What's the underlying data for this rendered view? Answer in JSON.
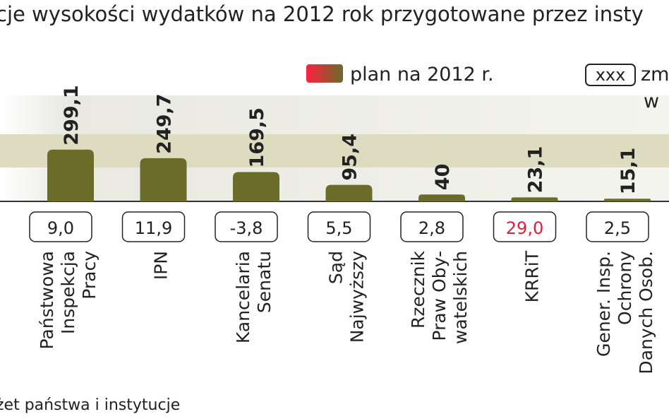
{
  "chart_data": {
    "type": "bar",
    "title": "cje wysokości wydatków na 2012 rok przygotowane przez insty",
    "legend": [
      "plan na 2012  r.",
      "xxx",
      "zm",
      "w"
    ],
    "source": "żet państwa i instytucje",
    "categories": [
      [
        "Państwowa",
        "Inspekcja",
        "Pracy"
      ],
      [
        "IPN"
      ],
      [
        "Kancelaria",
        "Senatu"
      ],
      [
        "Sąd",
        "Najwyższy"
      ],
      [
        "Rzecznik",
        "Praw Oby-",
        "watelskich"
      ],
      [
        "KRRiT"
      ],
      [
        "Gener. Insp.",
        "Ochrony",
        "Danych Osob."
      ]
    ],
    "values": [
      299.1,
      249.7,
      169.5,
      95.4,
      40,
      23.1,
      15.1
    ],
    "value_labels": [
      "299,1",
      "249,7",
      "169,5",
      "95,4",
      "40",
      "23,1",
      "15,1"
    ],
    "color": "#6b6b2a",
    "changes": {
      "values": [
        9.0,
        11.9,
        -3.8,
        5.5,
        2.8,
        29.0,
        2.5
      ],
      "value_labels": [
        "9,0",
        "11,9",
        "-3,8",
        "5,5",
        "2,8",
        "29,0",
        "2,5"
      ],
      "colors": [
        "#222",
        "#222",
        "#222",
        "#222",
        "#222",
        "#e0203a",
        "#222"
      ]
    }
  }
}
